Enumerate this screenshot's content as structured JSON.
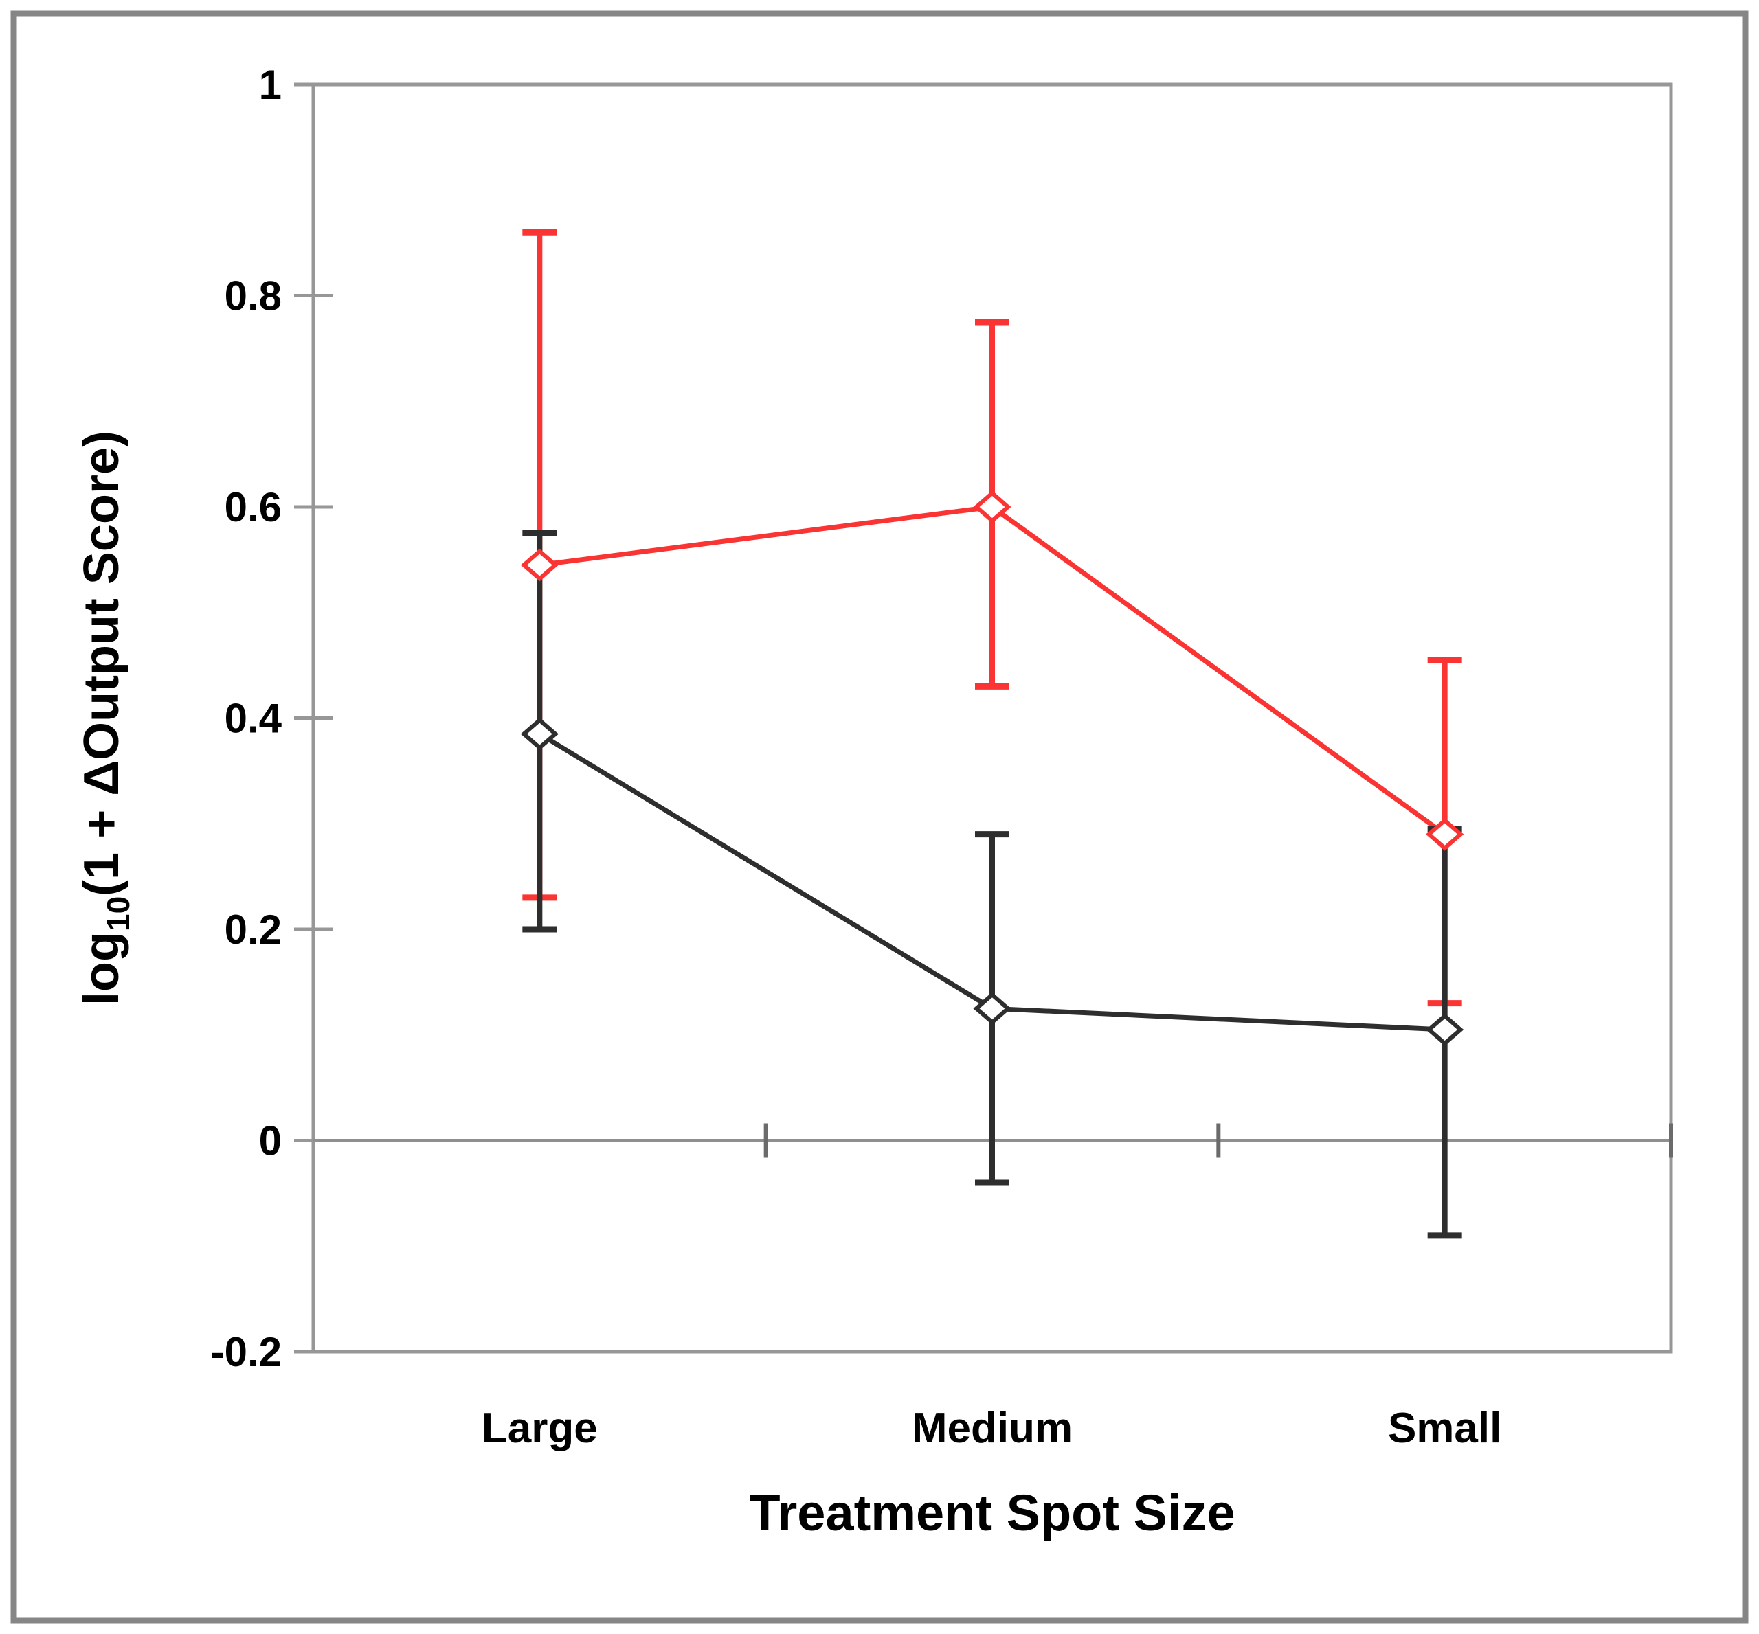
{
  "figure": {
    "outer_border_color": "#868686",
    "plot_border_color": "#979797",
    "zero_line_color": "#8f8f8f",
    "boundary_tick_color": "#6b6b6b",
    "text_color": "#000000",
    "background": "#ffffff"
  },
  "chart_data": {
    "type": "line",
    "title": "",
    "xlabel": "Treatment Spot Size",
    "ylabel": "log10(1 + ΔOutput Score)",
    "ylabel_parts": {
      "prefix": "log",
      "subscript": "10",
      "suffix": "(1 + ΔOutput Score)"
    },
    "categories": [
      "Large",
      "Medium",
      "Small"
    ],
    "series": [
      {
        "name": "red-series",
        "color": "#FA3433",
        "marker": "open-diamond",
        "values": [
          0.545,
          0.6,
          0.29
        ],
        "error_upper": [
          0.86,
          0.775,
          0.455
        ],
        "error_lower": [
          0.23,
          0.43,
          0.13
        ]
      },
      {
        "name": "black-series",
        "color": "#2E2E2E",
        "marker": "open-diamond",
        "values": [
          0.385,
          0.125,
          0.105
        ],
        "error_upper": [
          0.575,
          0.29,
          0.295
        ],
        "error_lower": [
          0.2,
          -0.04,
          -0.09
        ]
      }
    ],
    "ylim": [
      -0.2,
      1.0
    ],
    "ytick_step": 0.2,
    "ytick_labels": [
      "1",
      "0.8",
      "0.6",
      "0.4",
      "0.2",
      "0",
      "-0.2"
    ],
    "grid": "zero-line-only",
    "legend": "none"
  }
}
